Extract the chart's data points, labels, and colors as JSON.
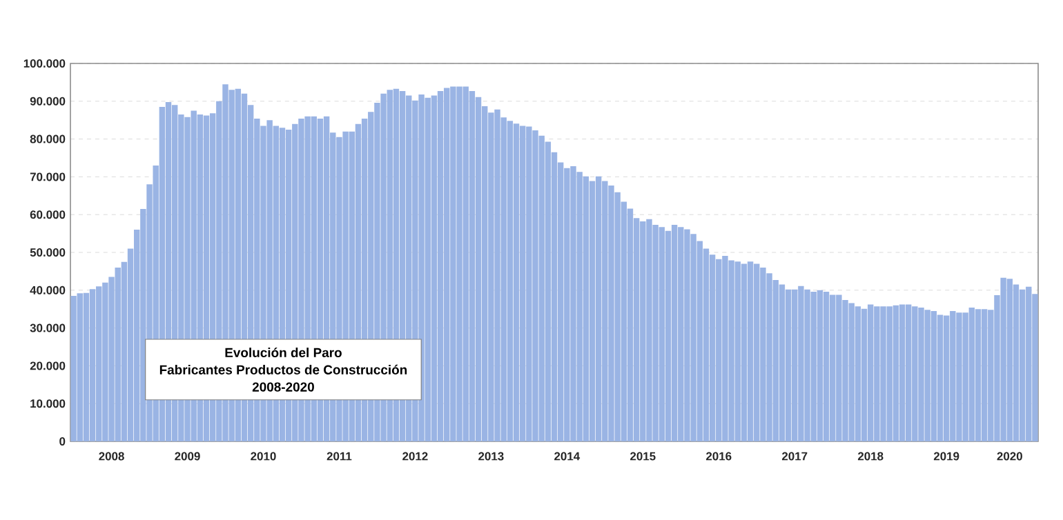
{
  "chart_data": {
    "type": "bar",
    "title": "Evolución del Paro",
    "subtitle": "Fabricantes Productos de Construcción",
    "annotations": [
      "2008-2020"
    ],
    "categories": [
      null,
      null,
      null,
      null,
      null,
      null,
      "2008",
      null,
      null,
      null,
      null,
      null,
      null,
      null,
      null,
      null,
      null,
      null,
      "2009",
      null,
      null,
      null,
      null,
      null,
      null,
      null,
      null,
      null,
      null,
      null,
      "2010",
      null,
      null,
      null,
      null,
      null,
      null,
      null,
      null,
      null,
      null,
      null,
      "2011",
      null,
      null,
      null,
      null,
      null,
      null,
      null,
      null,
      null,
      null,
      null,
      "2012",
      null,
      null,
      null,
      null,
      null,
      null,
      null,
      null,
      null,
      null,
      null,
      "2013",
      null,
      null,
      null,
      null,
      null,
      null,
      null,
      null,
      null,
      null,
      null,
      "2014",
      null,
      null,
      null,
      null,
      null,
      null,
      null,
      null,
      null,
      null,
      null,
      "2015",
      null,
      null,
      null,
      null,
      null,
      null,
      null,
      null,
      null,
      null,
      null,
      "2016",
      null,
      null,
      null,
      null,
      null,
      null,
      null,
      null,
      null,
      null,
      null,
      "2017",
      null,
      null,
      null,
      null,
      null,
      null,
      null,
      null,
      null,
      null,
      null,
      "2018",
      null,
      null,
      null,
      null,
      null,
      null,
      null,
      null,
      null,
      null,
      null,
      "2019",
      null,
      null,
      null,
      null,
      null,
      null,
      null,
      null,
      null,
      "2020",
      null,
      null,
      null,
      null
    ],
    "values": [
      38500,
      39200,
      39300,
      40300,
      41000,
      42000,
      43500,
      46000,
      47500,
      51000,
      56000,
      61500,
      68000,
      73000,
      88500,
      89800,
      89000,
      86500,
      85800,
      87500,
      86500,
      86200,
      86800,
      90000,
      94500,
      93000,
      93300,
      92000,
      89000,
      85400,
      83500,
      85000,
      83500,
      83000,
      82500,
      84000,
      85400,
      86000,
      86000,
      85400,
      86000,
      81700,
      80500,
      82000,
      82000,
      84000,
      85400,
      87200,
      89600,
      92000,
      93000,
      93300,
      92700,
      91500,
      90200,
      91800,
      90900,
      91500,
      92700,
      93500,
      93900,
      93900,
      93900,
      92700,
      91100,
      88700,
      87000,
      87800,
      85700,
      84800,
      84100,
      83500,
      83300,
      82300,
      80900,
      79300,
      76500,
      73800,
      72300,
      72800,
      71300,
      70100,
      68900,
      70100,
      68900,
      67700,
      65900,
      63400,
      61600,
      59100,
      58200,
      58800,
      57300,
      56700,
      55700,
      57300,
      56700,
      56100,
      54900,
      53000,
      51000,
      49400,
      48200,
      49100,
      47900,
      47600,
      47000,
      47600,
      47000,
      46000,
      44500,
      42700,
      41500,
      40200,
      40200,
      41100,
      40200,
      39600,
      40000,
      39600,
      38800,
      38800,
      37400,
      36600,
      35700,
      35100,
      36200,
      35700,
      35700,
      35700,
      36000,
      36200,
      36200,
      35700,
      35400,
      34800,
      34500,
      33500,
      33300,
      34500,
      34100,
      34100,
      35400,
      35000,
      35000,
      34800,
      38700,
      43300,
      43000,
      41500,
      40200,
      40900,
      39000
    ],
    "color": "#9ab4e4",
    "ylim": [
      0,
      100000
    ],
    "yticks": [
      {
        "value": 0,
        "label": "0"
      },
      {
        "value": 10000,
        "label": "10.000"
      },
      {
        "value": 20000,
        "label": "20.000"
      },
      {
        "value": 30000,
        "label": "30.000"
      },
      {
        "value": 40000,
        "label": "40.000"
      },
      {
        "value": 50000,
        "label": "50.000"
      },
      {
        "value": 60000,
        "label": "60.000"
      },
      {
        "value": 70000,
        "label": "70.000"
      },
      {
        "value": 80000,
        "label": "80.000"
      },
      {
        "value": 90000,
        "label": "90.000"
      },
      {
        "value": 100000,
        "label": "100.000"
      }
    ],
    "grid": "y"
  }
}
